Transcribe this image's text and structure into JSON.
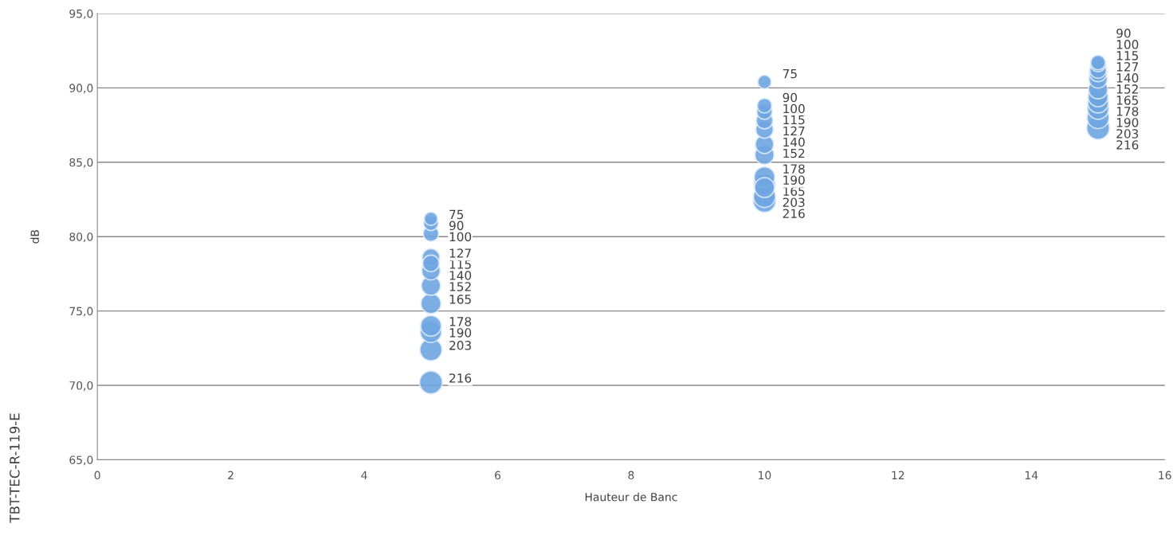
{
  "chart_data": {
    "type": "bubble",
    "xlabel": "Hauteur de Banc",
    "ylabel": "dB",
    "annotations": [
      "TBT-TEC-R-119-E"
    ],
    "series": [
      {
        "color": "#6fa5e0",
        "x": [
          5,
          5,
          5,
          5,
          5,
          5,
          5,
          5,
          5,
          5,
          5,
          5,
          10,
          10,
          10,
          10,
          10,
          10,
          10,
          10,
          10,
          10,
          10,
          10,
          15,
          15,
          15,
          15,
          15,
          15,
          15,
          15,
          15,
          15,
          15
        ],
        "values": [
          81.2,
          80.9,
          80.2,
          78.2,
          78.6,
          77.7,
          76.7,
          75.5,
          74.0,
          73.6,
          72.4,
          70.2,
          90.4,
          88.8,
          88.4,
          87.8,
          87.2,
          86.2,
          85.5,
          83.3,
          84.0,
          83.5,
          82.7,
          82.4,
          91.7,
          91.6,
          91.2,
          91.0,
          90.6,
          89.9,
          89.4,
          89.0,
          88.6,
          88.0,
          87.3
        ],
        "sizes": [
          75,
          90,
          100,
          115,
          127,
          140,
          152,
          165,
          178,
          190,
          203,
          216,
          75,
          90,
          100,
          115,
          127,
          140,
          152,
          165,
          178,
          190,
          203,
          216,
          90,
          100,
          115,
          127,
          140,
          152,
          165,
          178,
          190,
          203,
          216
        ],
        "value_labels": [
          "75",
          "90",
          "100",
          "115",
          "127",
          "140",
          "152",
          "165",
          "178",
          "190",
          "203",
          "216",
          "75",
          "90",
          "100",
          "115",
          "127",
          "140",
          "152",
          "165",
          "178",
          "190",
          "203",
          "216",
          "90",
          "100",
          "115",
          "127",
          "140",
          "152",
          "165",
          "178",
          "190",
          "203",
          "216"
        ]
      }
    ],
    "xlim": [
      0,
      16
    ],
    "xticks": [
      0,
      2,
      4,
      6,
      8,
      10,
      12,
      14,
      16
    ],
    "ylim": [
      65,
      95
    ],
    "yticks": [
      {
        "value": 65,
        "label": "65,0"
      },
      {
        "value": 70,
        "label": "70,0"
      },
      {
        "value": 75,
        "label": "75,0"
      },
      {
        "value": 80,
        "label": "80,0"
      },
      {
        "value": 85,
        "label": "85,0"
      },
      {
        "value": 90,
        "label": "90,0"
      },
      {
        "value": 95,
        "label": "95,0"
      }
    ],
    "grid": "y",
    "marker": "circle"
  }
}
